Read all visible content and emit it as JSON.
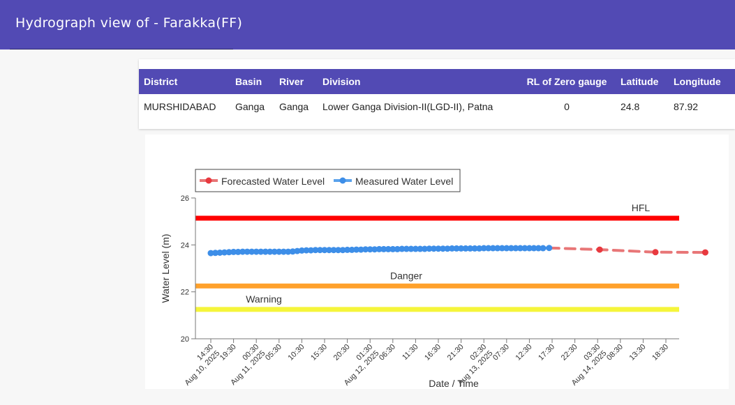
{
  "header": {
    "title": "Hydrograph view of - Farakka(FF)"
  },
  "station_table": {
    "columns": [
      "District",
      "Basin",
      "River",
      "Division",
      "RL of Zero gauge",
      "Latitude",
      "Longitude"
    ],
    "row": [
      "MURSHIDABAD",
      "Ganga",
      "Ganga",
      "Lower Ganga Division-II(LGD-II), Patna",
      "0",
      "24.8",
      "87.92"
    ]
  },
  "chart_data": {
    "type": "line",
    "xlabel": "Date / Time",
    "ylabel": "Water Level (m)",
    "ylim": [
      20,
      26
    ],
    "yticks": [
      "20",
      "22",
      "24",
      "26"
    ],
    "grid": false,
    "legend_placement": "top-left",
    "x_tick_labels": [
      "14:30\nAug 10, 2025",
      "19:30",
      "00:30\nAug 11, 2025",
      "05:30",
      "10:30",
      "15:30",
      "20:30",
      "01:30\nAug 12, 2025",
      "06:30",
      "11:30",
      "16:30",
      "21:30",
      "02:30\nAug 13, 2025",
      "07:30",
      "12:30",
      "17:30",
      "22:30",
      "03:30\nAug 14, 2025",
      "08:30",
      "13:30",
      "18:30"
    ],
    "x_tick_count": 21,
    "thresholds": [
      {
        "name": "HFL",
        "value": 25.14,
        "color": "#ff0000"
      },
      {
        "name": "Danger",
        "value": 22.25,
        "color": "#ffa12b"
      },
      {
        "name": "Warning",
        "value": 21.25,
        "color": "#f5f53a"
      }
    ],
    "series": [
      {
        "name": "Forecasted Water Level",
        "color": "#e8393f",
        "line_color": "#e87677",
        "style": "dashed",
        "points": [
          {
            "t": 14.87,
            "y": 23.87
          },
          {
            "t": 17.09,
            "y": 23.8
          },
          {
            "t": 19.54,
            "y": 23.69
          },
          {
            "t": 21.73,
            "y": 23.68
          }
        ]
      },
      {
        "name": "Measured Water Level",
        "color": "#3d8ee8",
        "line_color": "#5aa2ec",
        "style": "solid",
        "points": [
          {
            "t": 0.0,
            "y": 23.65
          },
          {
            "t": 0.2,
            "y": 23.66
          },
          {
            "t": 0.4,
            "y": 23.67
          },
          {
            "t": 0.6,
            "y": 23.68
          },
          {
            "t": 0.8,
            "y": 23.69
          },
          {
            "t": 1.0,
            "y": 23.7
          },
          {
            "t": 1.2,
            "y": 23.7
          },
          {
            "t": 1.4,
            "y": 23.71
          },
          {
            "t": 1.6,
            "y": 23.71
          },
          {
            "t": 1.8,
            "y": 23.71
          },
          {
            "t": 2.0,
            "y": 23.71
          },
          {
            "t": 2.2,
            "y": 23.71
          },
          {
            "t": 2.4,
            "y": 23.71
          },
          {
            "t": 2.6,
            "y": 23.71
          },
          {
            "t": 2.8,
            "y": 23.71
          },
          {
            "t": 3.0,
            "y": 23.71
          },
          {
            "t": 3.2,
            "y": 23.71
          },
          {
            "t": 3.4,
            "y": 23.71
          },
          {
            "t": 3.6,
            "y": 23.72
          },
          {
            "t": 3.8,
            "y": 23.74
          },
          {
            "t": 4.0,
            "y": 23.76
          },
          {
            "t": 4.2,
            "y": 23.77
          },
          {
            "t": 4.4,
            "y": 23.77
          },
          {
            "t": 4.6,
            "y": 23.78
          },
          {
            "t": 4.8,
            "y": 23.78
          },
          {
            "t": 5.0,
            "y": 23.78
          },
          {
            "t": 5.2,
            "y": 23.78
          },
          {
            "t": 5.4,
            "y": 23.78
          },
          {
            "t": 5.6,
            "y": 23.78
          },
          {
            "t": 5.8,
            "y": 23.78
          },
          {
            "t": 6.0,
            "y": 23.79
          },
          {
            "t": 6.2,
            "y": 23.79
          },
          {
            "t": 6.4,
            "y": 23.8
          },
          {
            "t": 6.6,
            "y": 23.8
          },
          {
            "t": 6.8,
            "y": 23.81
          },
          {
            "t": 7.0,
            "y": 23.81
          },
          {
            "t": 7.2,
            "y": 23.81
          },
          {
            "t": 7.4,
            "y": 23.82
          },
          {
            "t": 7.6,
            "y": 23.82
          },
          {
            "t": 7.8,
            "y": 23.82
          },
          {
            "t": 8.0,
            "y": 23.82
          },
          {
            "t": 8.2,
            "y": 23.82
          },
          {
            "t": 8.4,
            "y": 23.83
          },
          {
            "t": 8.6,
            "y": 23.83
          },
          {
            "t": 8.8,
            "y": 23.83
          },
          {
            "t": 9.0,
            "y": 23.83
          },
          {
            "t": 9.2,
            "y": 23.83
          },
          {
            "t": 9.4,
            "y": 23.83
          },
          {
            "t": 9.6,
            "y": 23.84
          },
          {
            "t": 9.8,
            "y": 23.84
          },
          {
            "t": 10.0,
            "y": 23.84
          },
          {
            "t": 10.2,
            "y": 23.84
          },
          {
            "t": 10.4,
            "y": 23.84
          },
          {
            "t": 10.6,
            "y": 23.85
          },
          {
            "t": 10.8,
            "y": 23.85
          },
          {
            "t": 11.0,
            "y": 23.85
          },
          {
            "t": 11.2,
            "y": 23.85
          },
          {
            "t": 11.4,
            "y": 23.85
          },
          {
            "t": 11.6,
            "y": 23.85
          },
          {
            "t": 11.8,
            "y": 23.85
          },
          {
            "t": 12.0,
            "y": 23.86
          },
          {
            "t": 12.2,
            "y": 23.86
          },
          {
            "t": 12.4,
            "y": 23.86
          },
          {
            "t": 12.6,
            "y": 23.86
          },
          {
            "t": 12.8,
            "y": 23.86
          },
          {
            "t": 13.0,
            "y": 23.86
          },
          {
            "t": 13.2,
            "y": 23.86
          },
          {
            "t": 13.4,
            "y": 23.86
          },
          {
            "t": 13.6,
            "y": 23.86
          },
          {
            "t": 13.8,
            "y": 23.86
          },
          {
            "t": 14.0,
            "y": 23.86
          },
          {
            "t": 14.2,
            "y": 23.86
          },
          {
            "t": 14.4,
            "y": 23.86
          },
          {
            "t": 14.6,
            "y": 23.86
          },
          {
            "t": 14.87,
            "y": 23.87
          }
        ]
      }
    ]
  }
}
